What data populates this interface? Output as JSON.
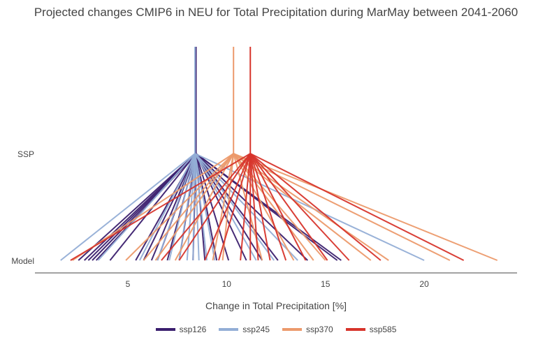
{
  "chart_data": {
    "type": "line",
    "title": "Projected changes CMIP6 in NEU for Total Precipitation during MarMay between 2041-2060",
    "xlabel": "Change in Total Precipitation [%]",
    "ylabel": "",
    "y_categories": [
      "Model",
      "SSP"
    ],
    "xlim": [
      0.3,
      24.7
    ],
    "x_ticks": [
      5,
      10,
      15,
      20
    ],
    "grid": false,
    "legend_position": "bottom",
    "series": [
      {
        "name": "ssp126",
        "color": "#3b1f6e",
        "ssp_value": 8.45,
        "model_values": [
          2.5,
          2.8,
          3.0,
          3.2,
          3.4,
          4.1,
          5.4,
          5.8,
          6.2,
          6.5,
          7.0,
          7.6,
          8.3,
          8.9,
          9.5,
          10.1,
          11.0,
          11.8,
          12.6,
          14.1,
          15.6,
          15.8
        ]
      },
      {
        "name": "ssp245",
        "color": "#93aed6",
        "ssp_value": 8.4,
        "model_values": [
          1.6,
          3.5,
          5.6,
          6.5,
          7.1,
          7.6,
          8.0,
          8.3,
          8.6,
          9.0,
          9.4,
          11.5,
          12.4,
          13.6,
          20.0
        ]
      },
      {
        "name": "ssp370",
        "color": "#ec9a6c",
        "ssp_value": 10.35,
        "model_values": [
          2.2,
          4.9,
          5.8,
          6.4,
          7.4,
          9.3,
          9.8,
          11.8,
          13.4,
          14.4,
          15.0,
          17.3,
          18.2,
          21.3,
          23.7
        ]
      },
      {
        "name": "ssp585",
        "color": "#d7342b",
        "ssp_value": 11.2,
        "model_values": [
          2.1,
          6.7,
          7.6,
          8.9,
          9.6,
          10.7,
          11.2,
          11.6,
          12.2,
          13.0,
          14.0,
          15.1,
          16.2,
          17.8,
          22.0
        ]
      }
    ]
  }
}
